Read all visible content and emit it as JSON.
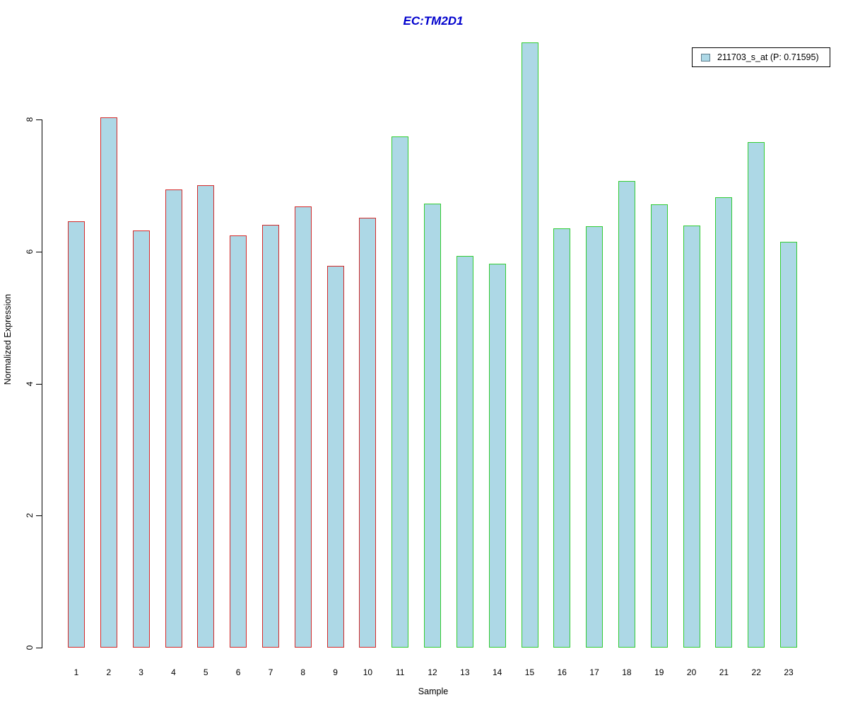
{
  "chart_data": {
    "type": "bar",
    "title": "EC:TM2D1",
    "xlabel": "Sample",
    "ylabel": "Normalized Expression",
    "categories": [
      "1",
      "2",
      "3",
      "4",
      "5",
      "6",
      "7",
      "8",
      "9",
      "10",
      "11",
      "12",
      "13",
      "14",
      "15",
      "16",
      "17",
      "18",
      "19",
      "20",
      "21",
      "22",
      "23"
    ],
    "values": [
      6.46,
      8.03,
      6.32,
      6.94,
      7.0,
      6.24,
      6.41,
      6.68,
      5.78,
      6.51,
      7.74,
      6.73,
      5.93,
      5.82,
      9.17,
      6.35,
      6.38,
      7.07,
      6.72,
      6.39,
      6.82,
      7.66,
      6.15
    ],
    "bar_border_colors": [
      "red",
      "red",
      "red",
      "red",
      "red",
      "red",
      "red",
      "red",
      "red",
      "red",
      "green",
      "green",
      "green",
      "green",
      "green",
      "green",
      "green",
      "green",
      "green",
      "green",
      "green",
      "green",
      "green"
    ],
    "ylim": [
      0,
      9.3
    ],
    "yticks": [
      0,
      2,
      4,
      6,
      8
    ],
    "grid": false,
    "legend_position": "top-right",
    "legend": [
      {
        "label": "211703_s_at (P: 0.71595)"
      }
    ]
  },
  "colors": {
    "title": "#0000cd",
    "bar_fill": "#add8e6",
    "red": "#d42a2a",
    "green": "#33cc33",
    "axis": "#000000",
    "legend_swatch_border": "#5f7d8c"
  }
}
